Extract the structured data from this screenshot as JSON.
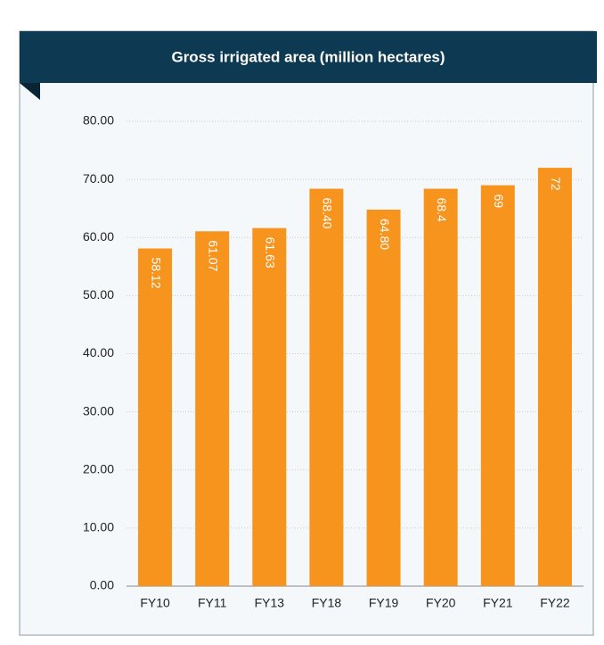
{
  "chart_data": {
    "type": "bar",
    "title": "Gross irrigated area (million hectares)",
    "categories": [
      "FY10",
      "FY11",
      "FY13",
      "FY18",
      "FY19",
      "FY20",
      "FY21",
      "FY22"
    ],
    "values": [
      58.12,
      61.07,
      61.63,
      68.4,
      64.8,
      68.4,
      69,
      72
    ],
    "value_labels": [
      "58.12",
      "61.07",
      "61.63",
      "68.40",
      "64.80",
      "68.4",
      "69",
      "72"
    ],
    "color": "#f7941d",
    "ylim": [
      0,
      80
    ],
    "yticks": [
      {
        "value": 0,
        "label": "0.00"
      },
      {
        "value": 10,
        "label": "10.00"
      },
      {
        "value": 20,
        "label": "20.00"
      },
      {
        "value": 30,
        "label": "30.00"
      },
      {
        "value": 40,
        "label": "40.00"
      },
      {
        "value": 50,
        "label": "50.00"
      },
      {
        "value": 60,
        "label": "60.00"
      },
      {
        "value": 70,
        "label": "70.00"
      },
      {
        "value": 80,
        "label": "80.00"
      }
    ],
    "grid": true
  }
}
